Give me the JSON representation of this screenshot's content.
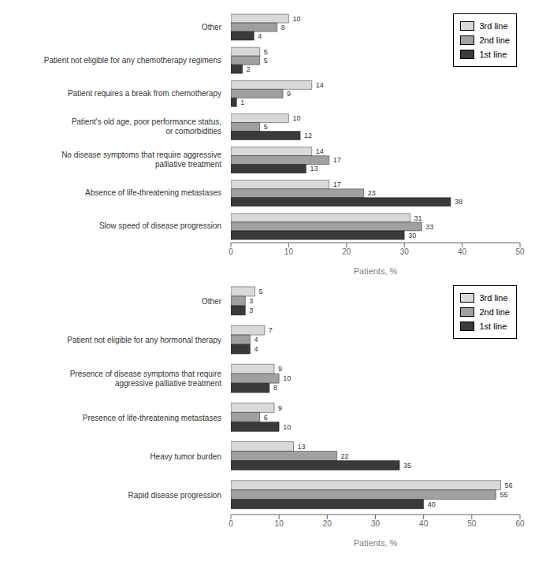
{
  "chart_data": [
    {
      "type": "bar",
      "orientation": "horizontal",
      "categories": [
        "Slow speed of disease progression",
        "Absence of life-threatening metastases",
        "No disease symptoms that require aggressive\npalliative treatment",
        "Patient's old age, poor performance status,\nor comorbidities",
        "Patient requires a break from chemotherapy",
        "Patient not eligible for any chemotherapy regimens",
        "Other"
      ],
      "series": [
        {
          "name": "3rd line",
          "color": "#d9d9d9",
          "values": [
            31,
            17,
            14,
            10,
            14,
            5,
            10
          ]
        },
        {
          "name": "2nd line",
          "color": "#a0a0a0",
          "values": [
            33,
            23,
            17,
            5,
            9,
            5,
            8
          ]
        },
        {
          "name": "1st line",
          "color": "#3a3a3a",
          "values": [
            30,
            38,
            13,
            12,
            1,
            2,
            4
          ]
        }
      ],
      "xlim": [
        0,
        50
      ],
      "xticks": [
        0,
        10,
        20,
        30,
        40,
        50
      ],
      "xlabel": "Patients, %",
      "data_labels": true,
      "legend": "upper right",
      "grid": false
    },
    {
      "type": "bar",
      "orientation": "horizontal",
      "categories": [
        "Rapid disease progression",
        "Heavy tumor burden",
        "Presence of life-threatening metastases",
        "Presence of disease symptoms that require\naggressive palliative treatment",
        "Patient not eligible for any hormonal therapy",
        "Other"
      ],
      "series": [
        {
          "name": "3rd line",
          "color": "#d9d9d9",
          "values": [
            56,
            13,
            9,
            9,
            7,
            5
          ]
        },
        {
          "name": "2nd line",
          "color": "#a0a0a0",
          "values": [
            55,
            22,
            6,
            10,
            4,
            3
          ]
        },
        {
          "name": "1st line",
          "color": "#3a3a3a",
          "values": [
            40,
            35,
            10,
            8,
            4,
            3
          ]
        }
      ],
      "xlim": [
        0,
        60
      ],
      "xticks": [
        0,
        10,
        20,
        30,
        40,
        50,
        60
      ],
      "xlabel": "Patients, %",
      "data_labels": true,
      "legend": "upper right",
      "grid": false
    }
  ]
}
